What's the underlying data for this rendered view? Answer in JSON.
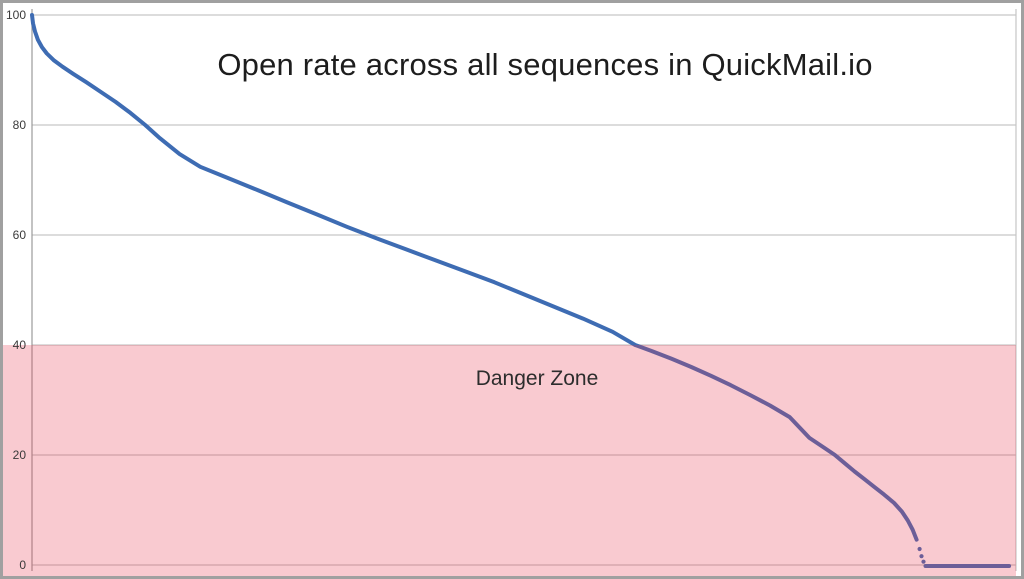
{
  "frame": {
    "border_color": "#a0a0a0",
    "background": "#ffffff"
  },
  "chart_data": {
    "type": "line",
    "title": "Open rate across all sequences in QuickMail.io",
    "xlabel": "",
    "ylabel": "",
    "x_axis": {
      "unit": "share of sequences (%)",
      "range": [
        0,
        100
      ],
      "tick_labels_visible": false
    },
    "y_axis": {
      "unit": "open rate (%)",
      "range": [
        0,
        100
      ],
      "ticks": [
        0,
        20,
        40,
        60,
        80,
        100
      ]
    },
    "grid": "horizontal",
    "legend": "none",
    "danger_zone": {
      "label": "Danger Zone",
      "from": 0,
      "to": 40,
      "fill": "rgba(231, 60, 82, 0.27)"
    },
    "colors": {
      "line": "#3e6cb3",
      "line_in_danger_zone": "#6a5f9b",
      "grid": "#c6c6c6",
      "axis": "#9b9b9b",
      "tick_text": "#3a3a3a"
    },
    "series": [
      {
        "name": "Open rate",
        "color": "#3e6cb3",
        "points": [
          [
            0,
            100
          ],
          [
            0.1,
            98.5
          ],
          [
            0.3,
            97
          ],
          [
            0.6,
            95.5
          ],
          [
            1,
            94.2
          ],
          [
            1.5,
            93
          ],
          [
            2.2,
            91.8
          ],
          [
            3.1,
            90.6
          ],
          [
            4.2,
            89.3
          ],
          [
            5.5,
            87.8
          ],
          [
            7,
            86
          ],
          [
            8.5,
            84.2
          ],
          [
            10,
            82.2
          ],
          [
            11.5,
            80
          ],
          [
            13,
            77.6
          ],
          [
            15,
            74.7
          ],
          [
            17.1,
            72.4
          ],
          [
            20,
            70.3
          ],
          [
            23,
            68.1
          ],
          [
            26,
            65.9
          ],
          [
            29,
            63.7
          ],
          [
            32,
            61.5
          ],
          [
            35,
            59.4
          ],
          [
            38,
            57.4
          ],
          [
            41,
            55.4
          ],
          [
            44,
            53.4
          ],
          [
            47,
            51.4
          ],
          [
            50,
            49.2
          ],
          [
            53,
            47
          ],
          [
            56,
            44.8
          ],
          [
            59,
            42.4
          ],
          [
            61.3,
            40
          ],
          [
            63,
            38.9
          ],
          [
            65,
            37.5
          ],
          [
            67,
            36
          ],
          [
            69,
            34.4
          ],
          [
            71,
            32.7
          ],
          [
            73,
            30.9
          ],
          [
            75,
            29
          ],
          [
            77,
            26.9
          ],
          [
            79,
            23.1
          ],
          [
            80.6,
            21.2
          ],
          [
            81.6,
            20
          ],
          [
            82.6,
            18.5
          ],
          [
            83.6,
            17
          ],
          [
            84.6,
            15.6
          ],
          [
            85.6,
            14.2
          ],
          [
            86.6,
            12.8
          ],
          [
            87.6,
            11.3
          ],
          [
            88.4,
            9.7
          ],
          [
            89,
            8.1
          ],
          [
            89.5,
            6.4
          ],
          [
            89.9,
            4.6
          ],
          [
            90.2,
            2.9
          ],
          [
            90.4,
            1.6
          ],
          [
            90.6,
            0.6
          ],
          [
            90.8,
            0
          ],
          [
            92,
            0
          ],
          [
            94,
            0
          ],
          [
            96,
            0
          ],
          [
            98,
            0
          ],
          [
            99.3,
            0
          ]
        ]
      }
    ]
  }
}
